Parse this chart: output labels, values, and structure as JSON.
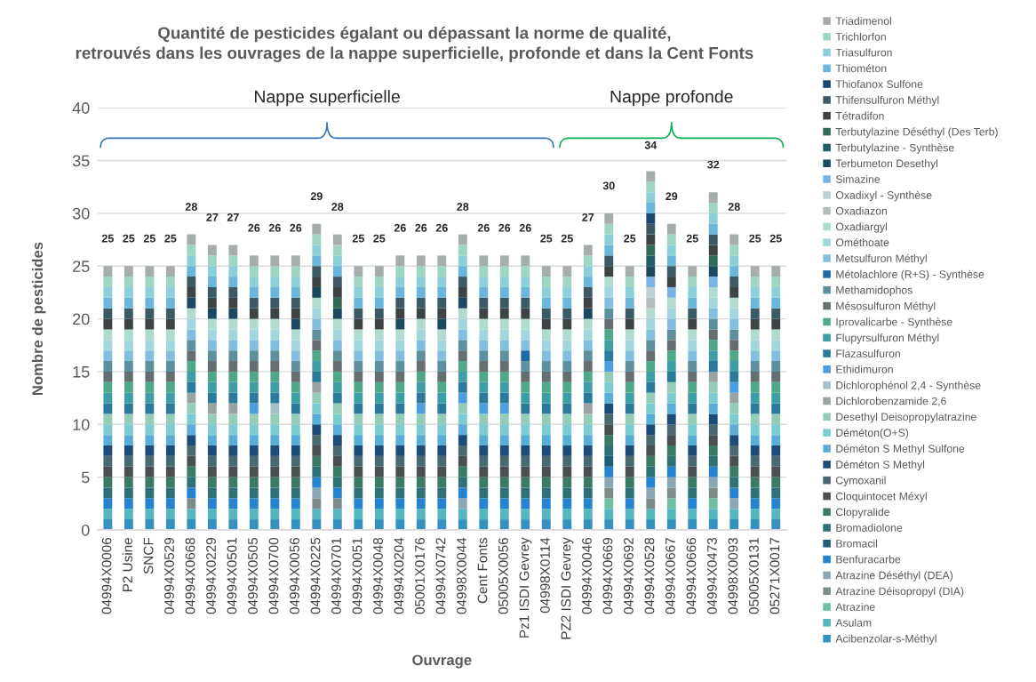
{
  "chart_data": {
    "type": "bar",
    "stacked": true,
    "title": "Quantité de pesticides égalant ou dépassant la norme de qualité,\nretrouvés dans les ouvrages de la nappe superficielle, profonde et dans la Cent Fonts",
    "xlabel": "Ouvrage",
    "ylabel": "Nombre de pesticides",
    "categories": [
      "04994X0006",
      "P2 Usine",
      "SNCF",
      "04994X0529",
      "04994X0668",
      "04994X0229",
      "04994X0501",
      "04994X0505",
      "04994X0700",
      "04994X0056",
      "04994X0225",
      "04994X0701",
      "04994X0051",
      "04994X0048",
      "04994X0204",
      "05001X0176",
      "04994X0742",
      "04998X0044",
      "Cent Fonts",
      "05005X0056",
      "Pz1 ISDI Gevrey",
      "04998X0114",
      "PZ2 ISDI Gevrey",
      "04994X0046",
      "04994X0669",
      "04994X0692",
      "04994X0528",
      "04994X0667",
      "04994X0666",
      "04994X0473",
      "04998X0093",
      "05005X0131",
      "05271X0017"
    ],
    "ylim": [
      0,
      40
    ],
    "yticks": [
      0,
      5,
      10,
      15,
      20,
      25,
      30,
      35,
      40
    ],
    "grid": "y",
    "legend": "right",
    "totals": [
      "25",
      "25",
      "25",
      "25",
      "28",
      "27",
      "27",
      "26",
      "26",
      "26",
      "29",
      "28",
      "25",
      "25",
      "26",
      "26",
      "26",
      "28",
      "26",
      "26",
      "26",
      "25",
      "25",
      "27",
      "30",
      "25",
      "34",
      "29",
      "25",
      "32",
      "28",
      "25",
      "25"
    ],
    "annotations": [
      "Nappe superficielle",
      "Nappe profonde"
    ],
    "series": [
      {
        "name": "Acibenzolar-s-Méthyl",
        "color": "#3591bd",
        "values": [
          1,
          1,
          1,
          1,
          1,
          1,
          1,
          1,
          1,
          1,
          1,
          1,
          1,
          1,
          1,
          1,
          1,
          1,
          1,
          1,
          1,
          1,
          1,
          1,
          1,
          1,
          1,
          1,
          1,
          1,
          1,
          1,
          1
        ]
      },
      {
        "name": "Asulam",
        "color": "#56b6c0",
        "values": [
          1,
          1,
          1,
          1,
          1,
          1,
          1,
          1,
          1,
          1,
          1,
          1,
          1,
          1,
          1,
          1,
          1,
          1,
          1,
          1,
          1,
          1,
          1,
          1,
          1,
          1,
          1,
          1,
          1,
          1,
          1,
          1,
          1
        ]
      },
      {
        "name": "Atrazine",
        "color": "#6fc0a0",
        "values": [
          null,
          null,
          null,
          null,
          null,
          null,
          null,
          null,
          null,
          null,
          null,
          null,
          null,
          null,
          null,
          null,
          null,
          null,
          null,
          null,
          null,
          null,
          null,
          null,
          1,
          null,
          null,
          1,
          null,
          1,
          null,
          null,
          null
        ]
      },
      {
        "name": "Atrazine Déisopropyl (DIA)",
        "color": "#7f8c8c",
        "values": [
          null,
          null,
          null,
          null,
          1,
          null,
          null,
          null,
          null,
          null,
          1,
          1,
          null,
          null,
          null,
          null,
          null,
          null,
          null,
          null,
          null,
          null,
          null,
          null,
          1,
          null,
          1,
          1,
          null,
          1,
          null,
          null,
          null
        ]
      },
      {
        "name": "Atrazine Déséthyl (DEA)",
        "color": "#8aa8b4",
        "values": [
          null,
          null,
          null,
          null,
          null,
          null,
          null,
          null,
          null,
          null,
          1,
          null,
          null,
          null,
          null,
          null,
          null,
          1,
          null,
          null,
          null,
          null,
          null,
          null,
          1,
          null,
          1,
          1,
          null,
          1,
          1,
          null,
          null
        ]
      },
      {
        "name": "Benfuracarbe",
        "color": "#2583cf",
        "values": [
          1,
          1,
          1,
          1,
          1,
          1,
          1,
          1,
          1,
          1,
          1,
          1,
          1,
          1,
          1,
          1,
          1,
          1,
          1,
          1,
          1,
          1,
          1,
          1,
          1,
          1,
          1,
          1,
          1,
          1,
          1,
          1,
          1
        ]
      },
      {
        "name": "Bromacil",
        "color": "#1f5e79",
        "values": [
          null,
          null,
          null,
          null,
          null,
          null,
          null,
          null,
          null,
          null,
          null,
          null,
          null,
          null,
          null,
          null,
          null,
          null,
          null,
          null,
          null,
          null,
          null,
          null,
          1,
          null,
          null,
          null,
          null,
          null,
          null,
          null,
          null
        ]
      },
      {
        "name": "Bromadiolone",
        "color": "#2e7276",
        "values": [
          1,
          1,
          1,
          1,
          1,
          1,
          1,
          1,
          1,
          1,
          1,
          1,
          1,
          1,
          1,
          1,
          1,
          1,
          1,
          1,
          1,
          1,
          1,
          1,
          1,
          1,
          1,
          1,
          1,
          1,
          1,
          1,
          1
        ]
      },
      {
        "name": "Clopyralide",
        "color": "#3b7b66",
        "values": [
          1,
          1,
          1,
          1,
          1,
          1,
          1,
          1,
          1,
          1,
          1,
          1,
          1,
          1,
          1,
          1,
          1,
          1,
          1,
          1,
          1,
          1,
          1,
          1,
          1,
          1,
          1,
          1,
          1,
          1,
          1,
          1,
          1
        ]
      },
      {
        "name": "Cloquintocet Méxyl",
        "color": "#4a5052",
        "values": [
          1,
          1,
          1,
          1,
          1,
          1,
          1,
          1,
          1,
          1,
          1,
          1,
          1,
          1,
          1,
          1,
          1,
          1,
          1,
          1,
          1,
          1,
          1,
          1,
          1,
          1,
          1,
          1,
          1,
          1,
          1,
          1,
          1
        ]
      },
      {
        "name": "Cymoxanil",
        "color": "#48696f",
        "values": [
          1,
          1,
          1,
          1,
          1,
          1,
          1,
          1,
          1,
          1,
          1,
          1,
          1,
          1,
          1,
          1,
          1,
          1,
          1,
          1,
          1,
          1,
          1,
          1,
          1,
          1,
          1,
          1,
          1,
          1,
          1,
          1,
          1
        ]
      },
      {
        "name": "Déméton S Methyl",
        "color": "#1c4d78",
        "values": [
          1,
          1,
          1,
          1,
          1,
          1,
          1,
          1,
          1,
          1,
          1,
          1,
          1,
          1,
          1,
          1,
          1,
          1,
          1,
          1,
          1,
          1,
          1,
          1,
          1,
          1,
          1,
          1,
          1,
          1,
          1,
          1,
          1
        ]
      },
      {
        "name": "Déméton S Methyl Sulfone",
        "color": "#58aed6",
        "values": [
          1,
          1,
          1,
          1,
          1,
          1,
          1,
          1,
          1,
          1,
          1,
          1,
          1,
          1,
          1,
          1,
          1,
          1,
          1,
          1,
          1,
          1,
          1,
          1,
          1,
          1,
          1,
          1,
          1,
          1,
          1,
          1,
          1
        ]
      },
      {
        "name": "Déméton(O+S)",
        "color": "#7ccbd1",
        "values": [
          1,
          1,
          1,
          1,
          1,
          1,
          1,
          1,
          1,
          1,
          1,
          1,
          1,
          1,
          1,
          1,
          1,
          1,
          1,
          1,
          1,
          1,
          1,
          1,
          1,
          1,
          1,
          1,
          1,
          1,
          1,
          1,
          1
        ]
      },
      {
        "name": "Desethyl Deisopropylatrazine",
        "color": "#93cdb7",
        "values": [
          1,
          1,
          1,
          1,
          1,
          1,
          1,
          1,
          1,
          1,
          1,
          1,
          1,
          1,
          1,
          1,
          1,
          1,
          1,
          1,
          1,
          1,
          1,
          1,
          1,
          1,
          1,
          1,
          1,
          1,
          1,
          1,
          1
        ]
      },
      {
        "name": "Dichlorobenzamide 2,6",
        "color": "#9aa3a3",
        "values": [
          null,
          null,
          null,
          null,
          1,
          1,
          1,
          null,
          null,
          null,
          1,
          null,
          null,
          null,
          null,
          null,
          null,
          null,
          null,
          null,
          null,
          null,
          null,
          1,
          null,
          null,
          null,
          null,
          null,
          1,
          1,
          null,
          null
        ]
      },
      {
        "name": "Dichlorophénol 2,4 - Synthèse",
        "color": "#a3c0c8",
        "values": [
          null,
          null,
          null,
          null,
          null,
          null,
          null,
          null,
          1,
          null,
          null,
          null,
          null,
          null,
          null,
          null,
          null,
          null,
          null,
          null,
          null,
          null,
          null,
          null,
          null,
          null,
          null,
          null,
          null,
          null,
          null,
          null,
          null
        ]
      },
      {
        "name": "Ethidimuron",
        "color": "#4a9fe0",
        "values": [
          null,
          null,
          null,
          null,
          null,
          null,
          null,
          1,
          null,
          null,
          null,
          null,
          null,
          null,
          null,
          1,
          null,
          1,
          1,
          1,
          null,
          null,
          null,
          null,
          1,
          null,
          null,
          null,
          null,
          null,
          1,
          null,
          null
        ]
      },
      {
        "name": "Flazasulfuron",
        "color": "#2b7a9b",
        "values": [
          1,
          1,
          1,
          1,
          1,
          1,
          1,
          1,
          1,
          1,
          1,
          1,
          1,
          1,
          1,
          1,
          1,
          1,
          1,
          1,
          1,
          1,
          1,
          1,
          1,
          1,
          1,
          1,
          1,
          1,
          1,
          1,
          1
        ]
      },
      {
        "name": "Flupyrsulfuron Méthyl",
        "color": "#3d9ea6",
        "values": [
          1,
          1,
          1,
          1,
          1,
          1,
          1,
          1,
          1,
          1,
          1,
          1,
          1,
          1,
          1,
          1,
          1,
          1,
          1,
          1,
          1,
          1,
          1,
          1,
          1,
          1,
          1,
          1,
          1,
          1,
          1,
          1,
          1
        ]
      },
      {
        "name": "Iprovalicarbe - Synthèse",
        "color": "#4fa88a",
        "values": [
          1,
          1,
          1,
          1,
          1,
          1,
          1,
          1,
          1,
          1,
          1,
          1,
          1,
          1,
          1,
          1,
          1,
          1,
          1,
          1,
          1,
          1,
          1,
          1,
          1,
          1,
          1,
          1,
          1,
          1,
          1,
          1,
          1
        ]
      },
      {
        "name": "Mésosulfuron Méthyl",
        "color": "#656e70",
        "values": [
          1,
          1,
          1,
          1,
          1,
          1,
          1,
          1,
          1,
          1,
          1,
          1,
          1,
          1,
          1,
          1,
          1,
          1,
          1,
          1,
          1,
          1,
          1,
          1,
          1,
          1,
          1,
          1,
          1,
          1,
          1,
          1,
          1
        ]
      },
      {
        "name": "Methamidophos",
        "color": "#5e8f9c",
        "values": [
          1,
          1,
          1,
          1,
          1,
          1,
          1,
          1,
          1,
          1,
          1,
          1,
          1,
          1,
          1,
          1,
          1,
          1,
          1,
          1,
          1,
          1,
          1,
          1,
          1,
          1,
          1,
          1,
          1,
          1,
          1,
          1,
          1
        ]
      },
      {
        "name": "Métolachlore (R+S) - Synthèse",
        "color": "#1f6aa5",
        "values": [
          null,
          null,
          null,
          null,
          null,
          null,
          null,
          null,
          null,
          null,
          null,
          null,
          null,
          null,
          null,
          null,
          null,
          null,
          null,
          null,
          1,
          null,
          null,
          null,
          null,
          null,
          null,
          null,
          null,
          null,
          null,
          null,
          null
        ]
      },
      {
        "name": "Metsulfuron Méthyl",
        "color": "#82bfdf",
        "values": [
          1,
          1,
          1,
          1,
          1,
          1,
          1,
          1,
          1,
          1,
          1,
          1,
          1,
          1,
          1,
          1,
          1,
          1,
          1,
          1,
          1,
          1,
          1,
          1,
          1,
          1,
          1,
          1,
          1,
          1,
          1,
          1,
          1
        ]
      },
      {
        "name": "Ométhoate",
        "color": "#a0d6dc",
        "values": [
          1,
          1,
          1,
          1,
          1,
          1,
          1,
          1,
          1,
          1,
          1,
          1,
          1,
          1,
          1,
          1,
          1,
          1,
          1,
          1,
          1,
          1,
          1,
          1,
          1,
          1,
          1,
          1,
          1,
          1,
          1,
          1,
          1
        ]
      },
      {
        "name": "Oxadiargyl",
        "color": "#b0dbcf",
        "values": [
          1,
          1,
          1,
          1,
          1,
          1,
          1,
          1,
          1,
          1,
          1,
          1,
          1,
          1,
          1,
          1,
          1,
          1,
          1,
          1,
          1,
          1,
          1,
          1,
          1,
          1,
          1,
          1,
          1,
          1,
          1,
          1,
          1
        ]
      },
      {
        "name": "Oxadiazon",
        "color": "#b3bcbc",
        "values": [
          null,
          null,
          null,
          null,
          null,
          null,
          null,
          null,
          null,
          null,
          null,
          null,
          null,
          null,
          null,
          null,
          null,
          null,
          null,
          null,
          null,
          null,
          null,
          null,
          null,
          null,
          1,
          null,
          null,
          null,
          null,
          null,
          null
        ]
      },
      {
        "name": "Oxadixyl - Synthèse",
        "color": "#bcd0d6",
        "values": [
          null,
          null,
          null,
          null,
          null,
          null,
          null,
          null,
          null,
          null,
          null,
          null,
          null,
          null,
          null,
          null,
          null,
          null,
          null,
          null,
          null,
          null,
          null,
          null,
          null,
          null,
          1,
          null,
          null,
          null,
          null,
          null,
          null
        ]
      },
      {
        "name": "Simazine",
        "color": "#7ab4e6",
        "values": [
          null,
          null,
          null,
          null,
          null,
          null,
          null,
          null,
          null,
          null,
          null,
          null,
          null,
          null,
          null,
          null,
          null,
          null,
          null,
          null,
          null,
          null,
          null,
          null,
          null,
          null,
          1,
          1,
          null,
          1,
          null,
          null,
          null
        ]
      },
      {
        "name": "Terbumeton Desethyl",
        "color": "#1b4a60",
        "values": [
          null,
          null,
          null,
          null,
          1,
          1,
          1,
          null,
          null,
          1,
          1,
          1,
          null,
          null,
          1,
          null,
          1,
          1,
          null,
          null,
          null,
          null,
          null,
          1,
          null,
          null,
          1,
          null,
          null,
          1,
          null,
          null,
          null
        ]
      },
      {
        "name": "Terbutylazine - Synthèse",
        "color": "#1f5e66",
        "values": [
          null,
          null,
          null,
          null,
          null,
          null,
          null,
          null,
          null,
          null,
          null,
          null,
          null,
          null,
          null,
          null,
          null,
          null,
          null,
          null,
          null,
          null,
          null,
          null,
          null,
          null,
          1,
          null,
          null,
          null,
          null,
          null,
          null
        ]
      },
      {
        "name": "Terbutylazine Déséthyl (Des Terb)",
        "color": "#2f6b58",
        "values": [
          null,
          null,
          null,
          null,
          null,
          null,
          null,
          null,
          null,
          null,
          null,
          1,
          null,
          null,
          null,
          null,
          null,
          null,
          null,
          null,
          null,
          null,
          null,
          null,
          null,
          null,
          1,
          null,
          null,
          1,
          null,
          null,
          null
        ]
      },
      {
        "name": "Tétradifon",
        "color": "#3e4446",
        "values": [
          1,
          1,
          1,
          1,
          1,
          1,
          1,
          1,
          1,
          1,
          1,
          1,
          1,
          1,
          1,
          1,
          1,
          1,
          1,
          1,
          1,
          1,
          1,
          1,
          1,
          1,
          1,
          1,
          1,
          1,
          1,
          1,
          1
        ]
      },
      {
        "name": "Thifensulfuron Méthyl",
        "color": "#3c5a63",
        "values": [
          1,
          1,
          1,
          1,
          1,
          1,
          1,
          1,
          1,
          1,
          1,
          1,
          1,
          1,
          1,
          1,
          1,
          1,
          1,
          1,
          1,
          1,
          1,
          1,
          1,
          1,
          1,
          1,
          1,
          1,
          1,
          1,
          1
        ]
      },
      {
        "name": "Thiofanox Sulfone",
        "color": "#1a4770",
        "values": [
          null,
          null,
          null,
          null,
          null,
          null,
          null,
          null,
          null,
          null,
          null,
          null,
          null,
          null,
          null,
          null,
          null,
          null,
          null,
          null,
          null,
          null,
          null,
          null,
          null,
          null,
          1,
          null,
          null,
          null,
          null,
          null,
          null
        ]
      },
      {
        "name": "Thiométon",
        "color": "#6bb6da",
        "values": [
          1,
          1,
          1,
          1,
          1,
          1,
          1,
          1,
          1,
          1,
          1,
          1,
          1,
          1,
          1,
          1,
          1,
          1,
          1,
          1,
          1,
          1,
          1,
          1,
          1,
          1,
          1,
          1,
          1,
          1,
          1,
          1,
          1
        ]
      },
      {
        "name": "Triasulfuron",
        "color": "#8ccfd8",
        "values": [
          1,
          1,
          1,
          1,
          1,
          1,
          1,
          1,
          1,
          1,
          1,
          1,
          1,
          1,
          1,
          1,
          1,
          1,
          1,
          1,
          1,
          1,
          1,
          1,
          1,
          1,
          1,
          1,
          1,
          1,
          1,
          1,
          1
        ]
      },
      {
        "name": "Trichlorfon",
        "color": "#9fd6c3",
        "values": [
          1,
          1,
          1,
          1,
          1,
          1,
          1,
          1,
          1,
          1,
          1,
          1,
          1,
          1,
          1,
          1,
          1,
          1,
          1,
          1,
          1,
          1,
          1,
          1,
          1,
          1,
          1,
          1,
          1,
          1,
          1,
          1,
          1
        ]
      },
      {
        "name": "Triadimenol",
        "color": "#a5adad",
        "values": [
          1,
          1,
          1,
          1,
          1,
          1,
          1,
          1,
          1,
          1,
          1,
          1,
          1,
          1,
          1,
          1,
          1,
          1,
          1,
          1,
          1,
          1,
          1,
          1,
          1,
          1,
          1,
          1,
          1,
          1,
          1,
          1,
          1
        ]
      }
    ]
  }
}
